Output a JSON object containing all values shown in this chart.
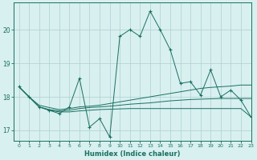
{
  "xlabel": "Humidex (Indice chaleur)",
  "bg_color": "#d8f0f0",
  "grid_color": "#b0cece",
  "line_color": "#1a7060",
  "xlim": [
    -0.5,
    23
  ],
  "ylim": [
    16.7,
    20.8
  ],
  "yticks": [
    17,
    18,
    19,
    20
  ],
  "xticks": [
    0,
    1,
    2,
    3,
    4,
    5,
    6,
    7,
    8,
    9,
    10,
    11,
    12,
    13,
    14,
    15,
    16,
    17,
    18,
    19,
    20,
    21,
    22,
    23
  ],
  "lines": [
    {
      "x": [
        0,
        1,
        2,
        3,
        4,
        5,
        6,
        7,
        8,
        9,
        10,
        11,
        12,
        13,
        14,
        15,
        16,
        17,
        18,
        19,
        20,
        21,
        22,
        23
      ],
      "y": [
        18.3,
        18.0,
        17.7,
        17.6,
        17.5,
        17.7,
        18.55,
        17.1,
        17.35,
        16.8,
        19.8,
        20.0,
        19.8,
        20.55,
        20.0,
        19.4,
        18.4,
        18.45,
        18.05,
        18.8,
        18.0,
        18.2,
        17.9,
        17.4
      ],
      "marker": "+"
    },
    {
      "x": [
        0,
        1,
        2,
        3,
        4,
        5,
        6,
        7,
        8,
        9,
        10,
        11,
        12,
        13,
        14,
        15,
        16,
        17,
        18,
        19,
        20,
        21,
        22,
        23
      ],
      "y": [
        18.3,
        18.0,
        17.75,
        17.68,
        17.62,
        17.65,
        17.7,
        17.72,
        17.75,
        17.8,
        17.85,
        17.9,
        17.95,
        18.0,
        18.05,
        18.1,
        18.15,
        18.2,
        18.25,
        18.28,
        18.3,
        18.32,
        18.35,
        18.35
      ],
      "marker": null
    },
    {
      "x": [
        0,
        1,
        2,
        3,
        4,
        5,
        6,
        7,
        8,
        9,
        10,
        11,
        12,
        13,
        14,
        15,
        16,
        17,
        18,
        19,
        20,
        21,
        22,
        23
      ],
      "y": [
        18.3,
        18.0,
        17.7,
        17.6,
        17.55,
        17.55,
        17.58,
        17.6,
        17.62,
        17.63,
        17.64,
        17.65,
        17.65,
        17.65,
        17.65,
        17.65,
        17.65,
        17.65,
        17.65,
        17.65,
        17.65,
        17.65,
        17.65,
        17.4
      ],
      "marker": null
    },
    {
      "x": [
        0,
        1,
        2,
        3,
        4,
        5,
        6,
        7,
        8,
        9,
        10,
        11,
        12,
        13,
        14,
        15,
        16,
        17,
        18,
        19,
        20,
        21,
        22,
        23
      ],
      "y": [
        18.3,
        18.0,
        17.7,
        17.62,
        17.58,
        17.6,
        17.65,
        17.68,
        17.7,
        17.72,
        17.75,
        17.78,
        17.8,
        17.82,
        17.85,
        17.88,
        17.9,
        17.92,
        17.93,
        17.94,
        17.95,
        17.95,
        17.95,
        17.95
      ],
      "marker": null
    }
  ]
}
